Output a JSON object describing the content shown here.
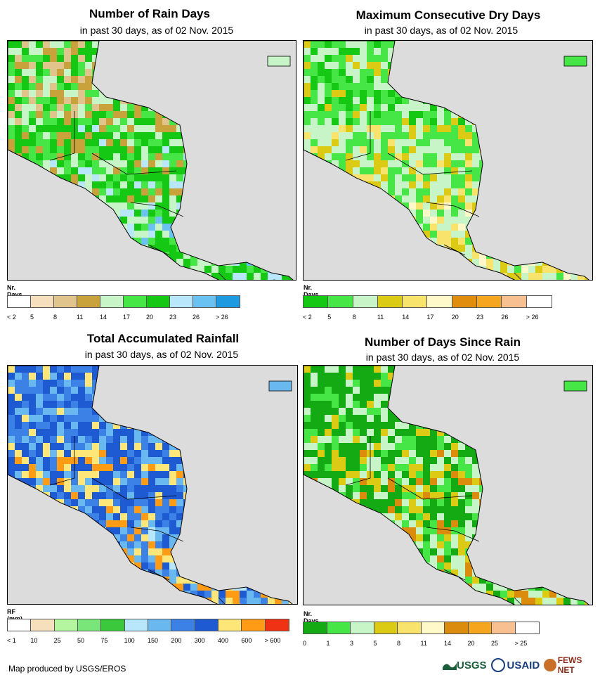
{
  "panels": [
    {
      "id": "rain-days",
      "title": "Number of Rain Days",
      "subtitle": "in past 30 days, as of 02 Nov. 2015",
      "legend_title": "Nr. Days",
      "legend_colors": [
        "#ffffff",
        "#f5dfbd",
        "#e1c48c",
        "#c9a23c",
        "#c8f5c8",
        "#46e646",
        "#14c814",
        "#b8e6fa",
        "#6ac2f2",
        "#1e9be0"
      ],
      "legend_labels": [
        "< 2",
        "5",
        "8",
        "11",
        "14",
        "17",
        "20",
        "23",
        "26",
        "> 26"
      ],
      "palette": [
        "#e1c48c",
        "#c9a23c",
        "#c8f5c8",
        "#46e646",
        "#14c814",
        "#14c814",
        "#b8e6fa",
        "#6ac2f2"
      ]
    },
    {
      "id": "max-dry-days",
      "title": "Maximum Consecutive Dry Days",
      "subtitle": "in past 30 days, as of 02 Nov. 2015",
      "legend_title": "Nr. Days",
      "legend_colors": [
        "#14c814",
        "#46e646",
        "#c8f5c8",
        "#dccb14",
        "#f8e36c",
        "#fff8c8",
        "#e08c0c",
        "#f5a51e",
        "#f8c090",
        "#ffffff"
      ],
      "legend_labels": [
        "< 2",
        "5",
        "8",
        "11",
        "14",
        "17",
        "20",
        "23",
        "26",
        "> 26"
      ],
      "palette": [
        "#14c814",
        "#46e646",
        "#46e646",
        "#c8f5c8",
        "#c8f5c8",
        "#dccb14",
        "#f8e36c",
        "#fff8c8"
      ]
    },
    {
      "id": "total-rainfall",
      "title": "Total Accumulated Rainfall",
      "subtitle": "in past 30 days, as of 02 Nov. 2015",
      "legend_title": "RF (mm)",
      "legend_colors": [
        "#ffffff",
        "#f5dfbd",
        "#b4f5a0",
        "#78e678",
        "#3cc83c",
        "#b8e6fa",
        "#6ab8f0",
        "#3c82e6",
        "#1e5ad2",
        "#ffe678",
        "#ff9b14",
        "#f03214"
      ],
      "legend_labels": [
        "< 1",
        "10",
        "25",
        "50",
        "75",
        "100",
        "150",
        "200",
        "300",
        "400",
        "600",
        "> 600"
      ],
      "palette": [
        "#3c82e6",
        "#1e5ad2",
        "#6ab8f0",
        "#3c82e6",
        "#1e5ad2",
        "#ffe678",
        "#ff9b14",
        "#b8e6fa"
      ]
    },
    {
      "id": "days-since-rain",
      "title": "Number of Days Since Rain",
      "subtitle": "in past 30 days, as of 02 Nov. 2015",
      "legend_title": "Nr. Days",
      "legend_colors": [
        "#14aa14",
        "#46e646",
        "#c8f5c8",
        "#dccb14",
        "#f8e36c",
        "#fff8c8",
        "#dc8c0c",
        "#f5a51e",
        "#f8c090",
        "#ffffff"
      ],
      "legend_labels": [
        "0",
        "1",
        "3",
        "5",
        "8",
        "11",
        "14",
        "20",
        "25",
        "> 25"
      ],
      "palette": [
        "#14aa14",
        "#14aa14",
        "#46e646",
        "#c8f5c8",
        "#14aa14",
        "#dccb14",
        "#dc8c0c",
        "#c8f5c8"
      ]
    }
  ],
  "credit": "Map produced by USGS/EROS",
  "logos": {
    "usgs": "USGS",
    "usaid": "USAID",
    "fews": "FEWS NET"
  }
}
